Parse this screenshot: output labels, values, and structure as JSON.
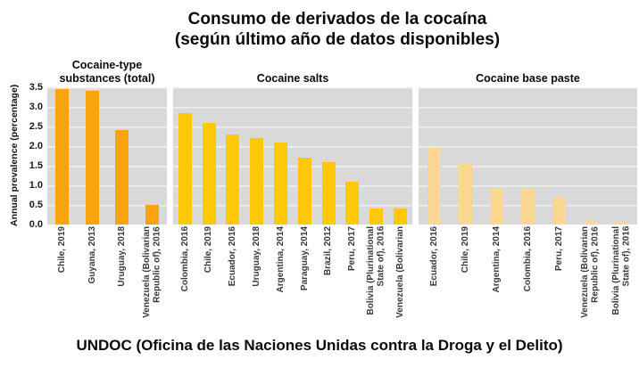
{
  "chart_data": {
    "type": "bar",
    "title": "Consumo de derivados de la cocaína",
    "subtitle": "(según último año de datos disponibles)",
    "ylabel": "Annual prevalence (percentage)",
    "ylim": [
      0,
      3.5
    ],
    "yticks": [
      "3.5",
      "3.0",
      "2.5",
      "2.0",
      "1.5",
      "1.0",
      "0.5",
      "0.0"
    ],
    "grid": true,
    "legend": "none",
    "panel_background": "#d9d9d9",
    "panels": [
      {
        "title": "Cocaine-type\nsubstances (total)",
        "bar_color": "#F9A40D",
        "categories": [
          "Chile, 2019",
          "Guyana, 2013",
          "Uruguay, 2018",
          "Venezuela (Bolivarian\nRepublic of), 2016"
        ],
        "values": [
          3.45,
          3.4,
          2.4,
          0.5
        ]
      },
      {
        "title": "Cocaine salts",
        "bar_color": "#FFC808",
        "categories": [
          "Colombia, 2016",
          "Chile, 2019",
          "Ecuador, 2016",
          "Uruguay, 2018",
          "Argentina, 2014",
          "Paraguay, 2014",
          "Brazil, 2012",
          "Peru, 2017",
          "Bolivia (Plurinational\nState of), 2016",
          "Venezuela (Bolivarian"
        ],
        "values": [
          2.85,
          2.6,
          2.3,
          2.2,
          2.1,
          1.7,
          1.6,
          1.1,
          0.4,
          0.4
        ]
      },
      {
        "title": "Cocaine base paste",
        "bar_color": "#FBD892",
        "categories": [
          "Ecuador, 2016",
          "Chile, 2019",
          "Argentina, 2014",
          "Colombia, 2016",
          "Peru, 2017",
          "Venezuela (Bolivarian\nRepublic of), 2016",
          "Bolivia (Plurinational\nState of), 2016"
        ],
        "values": [
          1.95,
          1.55,
          0.9,
          0.9,
          0.7,
          0.1,
          0.05
        ]
      }
    ]
  },
  "footer": "UNDOC (Oficina de las Naciones Unidas contra la Droga y el Delito)"
}
